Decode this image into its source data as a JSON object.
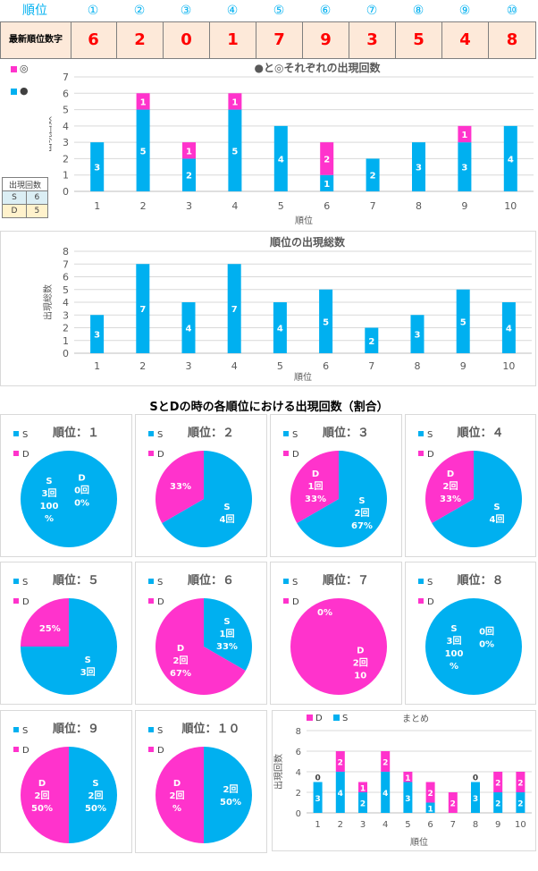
{
  "header": {
    "label": "順位",
    "positions": [
      "①",
      "②",
      "③",
      "④",
      "⑤",
      "⑥",
      "⑦",
      "⑧",
      "⑨",
      "⑩"
    ]
  },
  "latest": {
    "label": "最新順位数字",
    "numbers": [
      "6",
      "2",
      "0",
      "1",
      "7",
      "9",
      "3",
      "5",
      "4",
      "8"
    ]
  },
  "colors": {
    "S": "#00b0f0",
    "D": "#ff33cc"
  },
  "side_legend": {
    "D": "◎",
    "S": "●"
  },
  "count_table": {
    "header": "出現回数",
    "rows": [
      {
        "label": "S",
        "value": "6"
      },
      {
        "label": "D",
        "value": "5"
      }
    ]
  },
  "section_title": "SとDの時の各順位における出現回数（割合）",
  "chart_data": [
    {
      "type": "bar",
      "stacked": true,
      "title": "●と◎それぞれの出現回数",
      "xlabel": "順位",
      "ylabel": "出現回数",
      "categories": [
        "1",
        "2",
        "3",
        "4",
        "5",
        "6",
        "7",
        "8",
        "9",
        "10"
      ],
      "ylim": [
        0,
        7
      ],
      "yticks": [
        "0",
        "1",
        "2",
        "3",
        "4",
        "5",
        "6",
        "7"
      ],
      "series": [
        {
          "name": "●",
          "values": [
            3,
            5,
            2,
            5,
            4,
            1,
            2,
            3,
            3,
            4
          ],
          "labels": [
            "3",
            "5",
            "2",
            "5",
            "4",
            "1",
            "2",
            "3",
            "3",
            "4"
          ]
        },
        {
          "name": "◎",
          "values": [
            0,
            1,
            1,
            1,
            0,
            2,
            0,
            0,
            1,
            0
          ],
          "labels": [
            "",
            "1",
            "1",
            "1",
            "",
            "2",
            "",
            "",
            "1",
            ""
          ]
        }
      ]
    },
    {
      "type": "bar",
      "title": "順位の出現総数",
      "xlabel": "順位",
      "ylabel": "出現総数",
      "categories": [
        "1",
        "2",
        "3",
        "4",
        "5",
        "6",
        "7",
        "8",
        "9",
        "10"
      ],
      "ylim": [
        0,
        8
      ],
      "yticks": [
        "0",
        "1",
        "2",
        "3",
        "4",
        "5",
        "6",
        "7",
        "8"
      ],
      "values": [
        3,
        7,
        4,
        7,
        4,
        5,
        2,
        3,
        5,
        4
      ],
      "labels": [
        "3",
        "7",
        "4",
        "7",
        "4",
        "5",
        "2",
        "3",
        "5",
        "4"
      ]
    },
    {
      "type": "pie",
      "pies": [
        {
          "title": "順位：１",
          "S": 3,
          "D": 0,
          "s_label": [
            "S",
            "3回",
            "100",
            "%"
          ],
          "d_label": [
            "D",
            "0回",
            "0%"
          ]
        },
        {
          "title": "順位：２",
          "S": 4,
          "D": 2,
          "s_label": [
            "S",
            "4回"
          ],
          "d_label": [
            "33%"
          ]
        },
        {
          "title": "順位：３",
          "S": 2,
          "D": 1,
          "s_label": [
            "S",
            "2回",
            "67%"
          ],
          "d_label": [
            "D",
            "1回",
            "33%"
          ]
        },
        {
          "title": "順位：４",
          "S": 4,
          "D": 2,
          "s_label": [
            "S",
            "4回"
          ],
          "d_label": [
            "D",
            "2回",
            "33%"
          ]
        },
        {
          "title": "順位：５",
          "S": 3,
          "D": 1,
          "s_label": [
            "S",
            "3回"
          ],
          "d_label": [
            "25%"
          ]
        },
        {
          "title": "順位：６",
          "S": 1,
          "D": 2,
          "s_label": [
            "S",
            "1回",
            "33%"
          ],
          "d_label": [
            "D",
            "2回",
            "67%"
          ]
        },
        {
          "title": "順位：７",
          "S": 0,
          "D": 2,
          "s_label": [
            "0%"
          ],
          "d_label": [
            "D",
            "2回",
            "10"
          ]
        },
        {
          "title": "順位：８",
          "S": 3,
          "D": 0,
          "s_label": [
            "S",
            "3回",
            "100",
            "%"
          ],
          "d_label": [
            "0回",
            "0%"
          ]
        },
        {
          "title": "順位：９",
          "S": 2,
          "D": 2,
          "s_label": [
            "S",
            "2回",
            "50%"
          ],
          "d_label": [
            "D",
            "2回",
            "50%"
          ]
        },
        {
          "title": "順位：１０",
          "S": 2,
          "D": 2,
          "s_label": [
            "2回",
            "50%"
          ],
          "d_label": [
            "D",
            "2回",
            "%"
          ]
        }
      ],
      "legend": [
        "S",
        "D"
      ]
    },
    {
      "type": "bar",
      "stacked": true,
      "title": "まとめ",
      "xlabel": "順位",
      "ylabel": "出現回数",
      "categories": [
        "1",
        "2",
        "3",
        "4",
        "5",
        "6",
        "7",
        "8",
        "9",
        "10"
      ],
      "ylim": [
        0,
        8
      ],
      "yticks": [
        "0",
        "2",
        "4",
        "6",
        "8"
      ],
      "legend": [
        "D",
        "S"
      ],
      "series": [
        {
          "name": "S",
          "values": [
            3,
            4,
            2,
            4,
            3,
            1,
            0,
            3,
            2,
            2
          ],
          "labels": [
            "3",
            "4",
            "2",
            "4",
            "3",
            "1",
            "0",
            "3",
            "2",
            "2"
          ]
        },
        {
          "name": "D",
          "values": [
            0,
            2,
            1,
            2,
            1,
            2,
            2,
            0,
            2,
            2
          ],
          "labels": [
            "0",
            "2",
            "1",
            "2",
            "1",
            "2",
            "2",
            "0",
            "2",
            "2"
          ]
        }
      ]
    }
  ]
}
